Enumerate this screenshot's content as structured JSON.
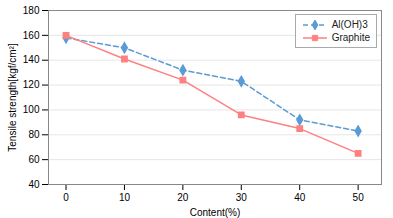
{
  "chart_data": {
    "type": "line",
    "x": [
      0,
      10,
      20,
      30,
      40,
      50
    ],
    "series": [
      {
        "name": "Al(OH)3",
        "color": "#5B9BD5",
        "values": [
          158,
          150,
          132,
          123,
          92,
          83
        ],
        "marker": "diamond",
        "line_style": "dashed"
      },
      {
        "name": "Graphite",
        "color": "#FF8080",
        "values": [
          160,
          141,
          124,
          96,
          85,
          65
        ],
        "marker": "square",
        "line_style": "solid"
      }
    ],
    "xlabel": "Content(%)",
    "ylabel": "Tensile strength[kgf/cm²]",
    "xlim": [
      -3,
      54
    ],
    "ylim": [
      40,
      180
    ],
    "xticks": [
      0,
      10,
      20,
      30,
      40,
      50
    ],
    "yticks": [
      40,
      60,
      80,
      100,
      120,
      140,
      160,
      180
    ],
    "grid": "y",
    "legend": "upper right"
  }
}
